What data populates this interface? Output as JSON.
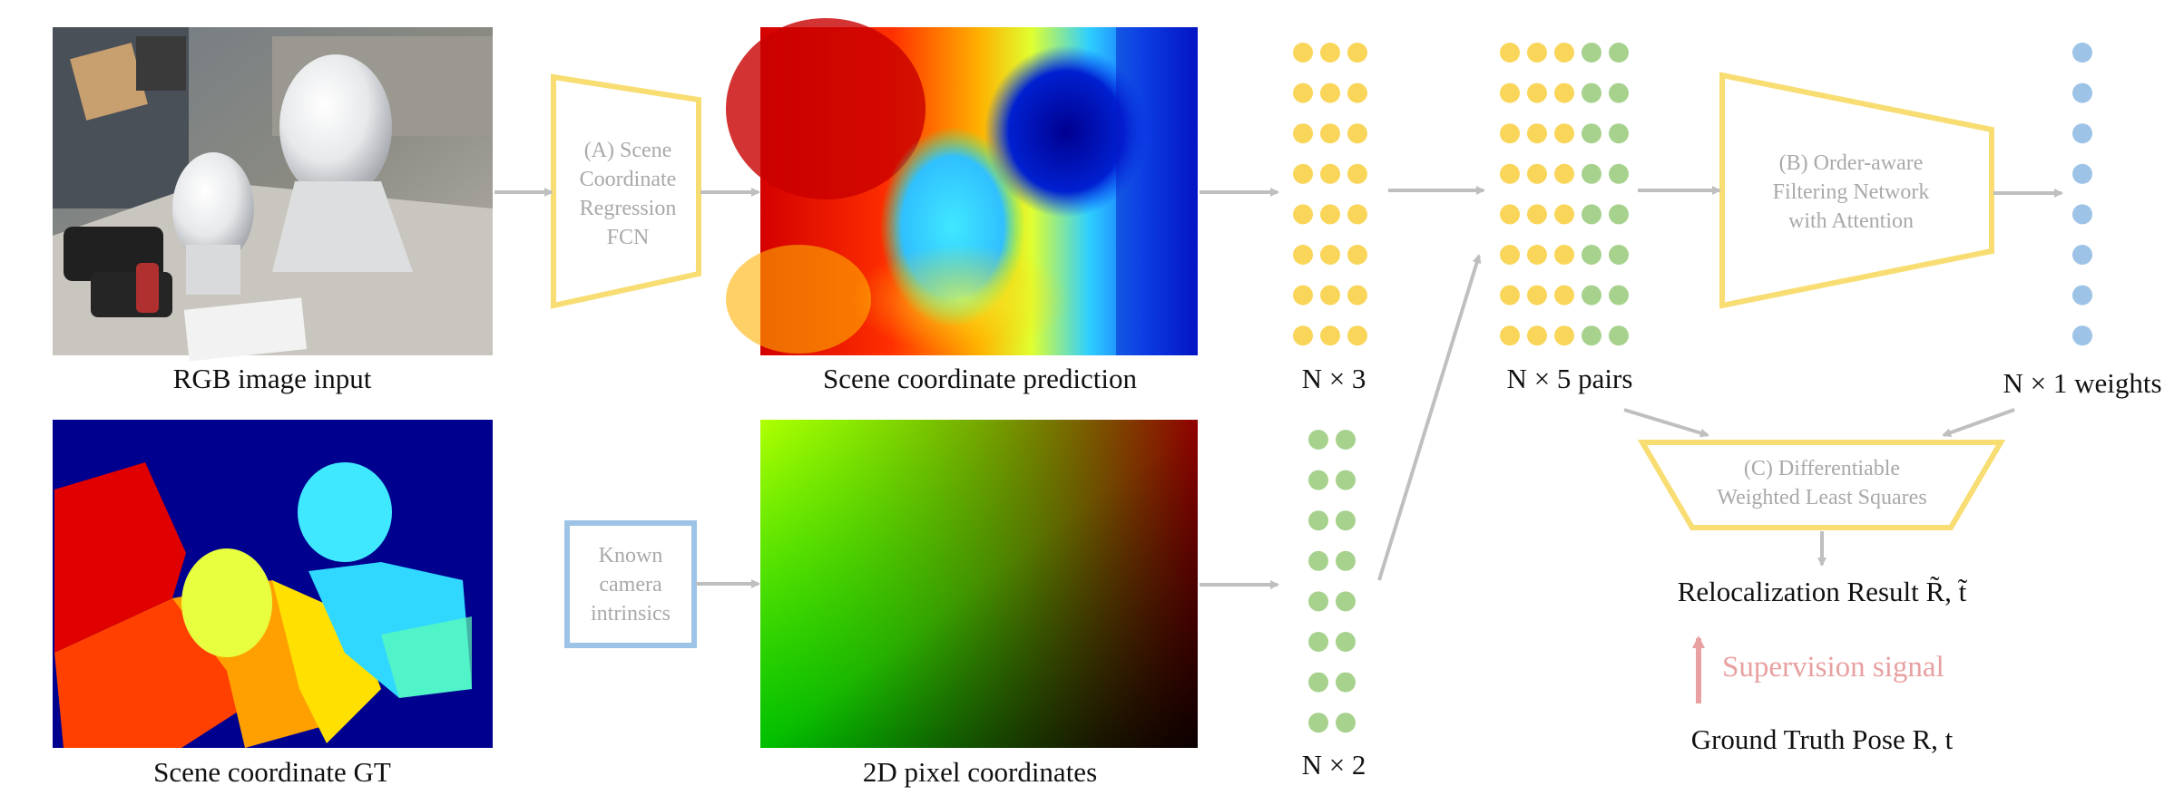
{
  "captions": {
    "rgb_input": "RGB image input",
    "scene_pred": "Scene coordinate prediction",
    "scene_gt": "Scene coordinate GT",
    "pixel_coords": "2D pixel coordinates",
    "n3": "N × 3",
    "n5": "N × 5 pairs",
    "n1": "N × 1 weights",
    "n2": "N × 2",
    "result": "Relocalization Result R̃, t̃",
    "gt_pose": "Ground Truth Pose R, t"
  },
  "modules": {
    "a_lines": [
      "(A) Scene",
      "Coordinate",
      "Regression",
      "FCN"
    ],
    "b_lines": [
      "(B) Order-aware",
      "Filtering Network",
      "with Attention"
    ],
    "c_lines": [
      "(C) Differentiable",
      "Weighted Least Squares"
    ],
    "camera_lines": [
      "Known",
      "camera",
      "intrinsics"
    ]
  },
  "supervision": "Supervision signal",
  "colors": {
    "module_stroke": "#f8dd73",
    "camera_stroke": "#9dc3e6",
    "arrow": "#bfbfbf",
    "dot_yellow": "#f9d65a",
    "dot_green": "#a7d28d",
    "dot_blue": "#9dc3e6",
    "supervision": "#e8a0a0"
  }
}
